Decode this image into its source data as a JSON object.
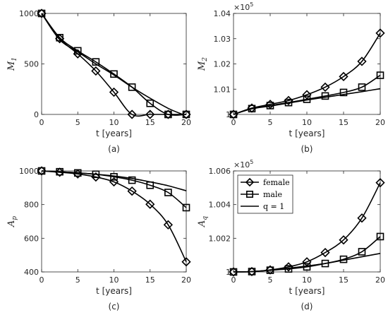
{
  "chart_data": [
    {
      "type": "line",
      "ylabel_main": "M",
      "ylabel_sub": "1",
      "xlabel": "t [years]",
      "caption": "(a)",
      "xlim": [
        0,
        20
      ],
      "ylim": [
        0,
        1000
      ],
      "xticks": [
        0,
        5,
        10,
        15,
        20
      ],
      "yticks": [
        0,
        500,
        1000
      ],
      "multiplier": null,
      "series": [
        {
          "marker": "diamond",
          "x": [
            0,
            2.5,
            5,
            7.5,
            10,
            12.5,
            15,
            17.5,
            20
          ],
          "y": [
            1000,
            750,
            600,
            430,
            220,
            0,
            0,
            0,
            0
          ]
        },
        {
          "marker": "square",
          "x": [
            0,
            2.5,
            5,
            7.5,
            10,
            12.5,
            15,
            17.5,
            20
          ],
          "y": [
            1000,
            760,
            630,
            520,
            400,
            270,
            110,
            0,
            0
          ]
        },
        {
          "marker": "none",
          "x": [
            0,
            2.5,
            5,
            7.5,
            10,
            12.5,
            15,
            17.5,
            19.5
          ],
          "y": [
            1000,
            740,
            620,
            500,
            390,
            270,
            160,
            60,
            0
          ]
        }
      ]
    },
    {
      "type": "line",
      "ylabel_main": "M",
      "ylabel_sub": "2",
      "xlabel": "t [years]",
      "caption": "(b)",
      "xlim": [
        0,
        20
      ],
      "ylim": [
        1.0,
        1.04
      ],
      "xticks": [
        0,
        5,
        10,
        15,
        20
      ],
      "yticks": [
        1.0,
        1.01,
        1.02,
        1.03,
        1.04
      ],
      "ytick_labels": [
        "1",
        "1.01",
        "1.02",
        "1.03",
        "1.04"
      ],
      "multiplier": {
        "base": "×10",
        "exp": "5"
      },
      "series": [
        {
          "marker": "diamond",
          "x": [
            0,
            2.5,
            5,
            7.5,
            10,
            12.5,
            15,
            17.5,
            20
          ],
          "y": [
            1.0,
            1.0025,
            1.004,
            1.0055,
            1.0078,
            1.0108,
            1.015,
            1.021,
            1.0322
          ]
        },
        {
          "marker": "square",
          "x": [
            0,
            2.5,
            5,
            7.5,
            10,
            12.5,
            15,
            17.5,
            20
          ],
          "y": [
            1.0,
            1.0023,
            1.0035,
            1.0047,
            1.006,
            1.0073,
            1.0087,
            1.0108,
            1.0155
          ]
        },
        {
          "marker": "none",
          "x": [
            0,
            2.5,
            5,
            7.5,
            10,
            12.5,
            15,
            17.5,
            20
          ],
          "y": [
            1.0,
            1.0022,
            1.0033,
            1.0045,
            1.0057,
            1.0068,
            1.0079,
            1.009,
            1.0102
          ]
        }
      ]
    },
    {
      "type": "line",
      "ylabel_main": "A",
      "ylabel_sub": "p",
      "xlabel": "t [years]",
      "caption": "(c)",
      "xlim": [
        0,
        20
      ],
      "ylim": [
        400,
        1000
      ],
      "xticks": [
        0,
        5,
        10,
        15,
        20
      ],
      "yticks": [
        400,
        600,
        800,
        1000
      ],
      "multiplier": null,
      "series": [
        {
          "marker": "diamond",
          "x": [
            0,
            2.5,
            5,
            7.5,
            10,
            12.5,
            15,
            17.5,
            20
          ],
          "y": [
            1000,
            992,
            982,
            964,
            935,
            880,
            802,
            680,
            460
          ]
        },
        {
          "marker": "square",
          "x": [
            0,
            2.5,
            5,
            7.5,
            10,
            12.5,
            15,
            17.5,
            20
          ],
          "y": [
            1000,
            995,
            988,
            980,
            965,
            945,
            915,
            872,
            782
          ]
        },
        {
          "marker": "none",
          "x": [
            0,
            2.5,
            5,
            7.5,
            10,
            12.5,
            15,
            17.5,
            20
          ],
          "y": [
            1000,
            995,
            989,
            980,
            970,
            955,
            935,
            912,
            882
          ]
        }
      ]
    },
    {
      "type": "line",
      "ylabel_main": "A",
      "ylabel_sub": "q",
      "xlabel": "t [years]",
      "caption": "(d)",
      "xlim": [
        0,
        20
      ],
      "ylim": [
        1.0,
        1.006
      ],
      "xticks": [
        0,
        5,
        10,
        15,
        20
      ],
      "yticks": [
        1.0,
        1.002,
        1.004,
        1.006
      ],
      "ytick_labels": [
        "1",
        "1.002",
        "1.004",
        "1.006"
      ],
      "multiplier": {
        "base": "×10",
        "exp": "5"
      },
      "legend": {
        "placement": "top-left",
        "entries": [
          {
            "label": "female",
            "marker": "diamond"
          },
          {
            "label": "male",
            "marker": "square"
          },
          {
            "label": "q = 1",
            "marker": "none"
          }
        ]
      },
      "series": [
        {
          "name": "female",
          "marker": "diamond",
          "x": [
            0,
            2.5,
            5,
            7.5,
            10,
            12.5,
            15,
            17.5,
            20
          ],
          "y": [
            1.0,
            1.00002,
            1.00012,
            1.0003,
            1.0006,
            1.00115,
            1.0019,
            1.0032,
            1.0053
          ]
        },
        {
          "name": "male",
          "marker": "square",
          "x": [
            0,
            2.5,
            5,
            7.5,
            10,
            12.5,
            15,
            17.5,
            20
          ],
          "y": [
            1.0,
            1.00002,
            1.0001,
            1.00018,
            1.0003,
            1.0005,
            1.00075,
            1.0012,
            1.0021
          ]
        },
        {
          "name": "q = 1",
          "marker": "none",
          "x": [
            0,
            2.5,
            5,
            7.5,
            10,
            12.5,
            15,
            17.5,
            20
          ],
          "y": [
            1.0,
            1.00002,
            1.0001,
            1.00022,
            1.00035,
            1.0005,
            1.0007,
            1.0009,
            1.0011
          ]
        }
      ]
    }
  ]
}
